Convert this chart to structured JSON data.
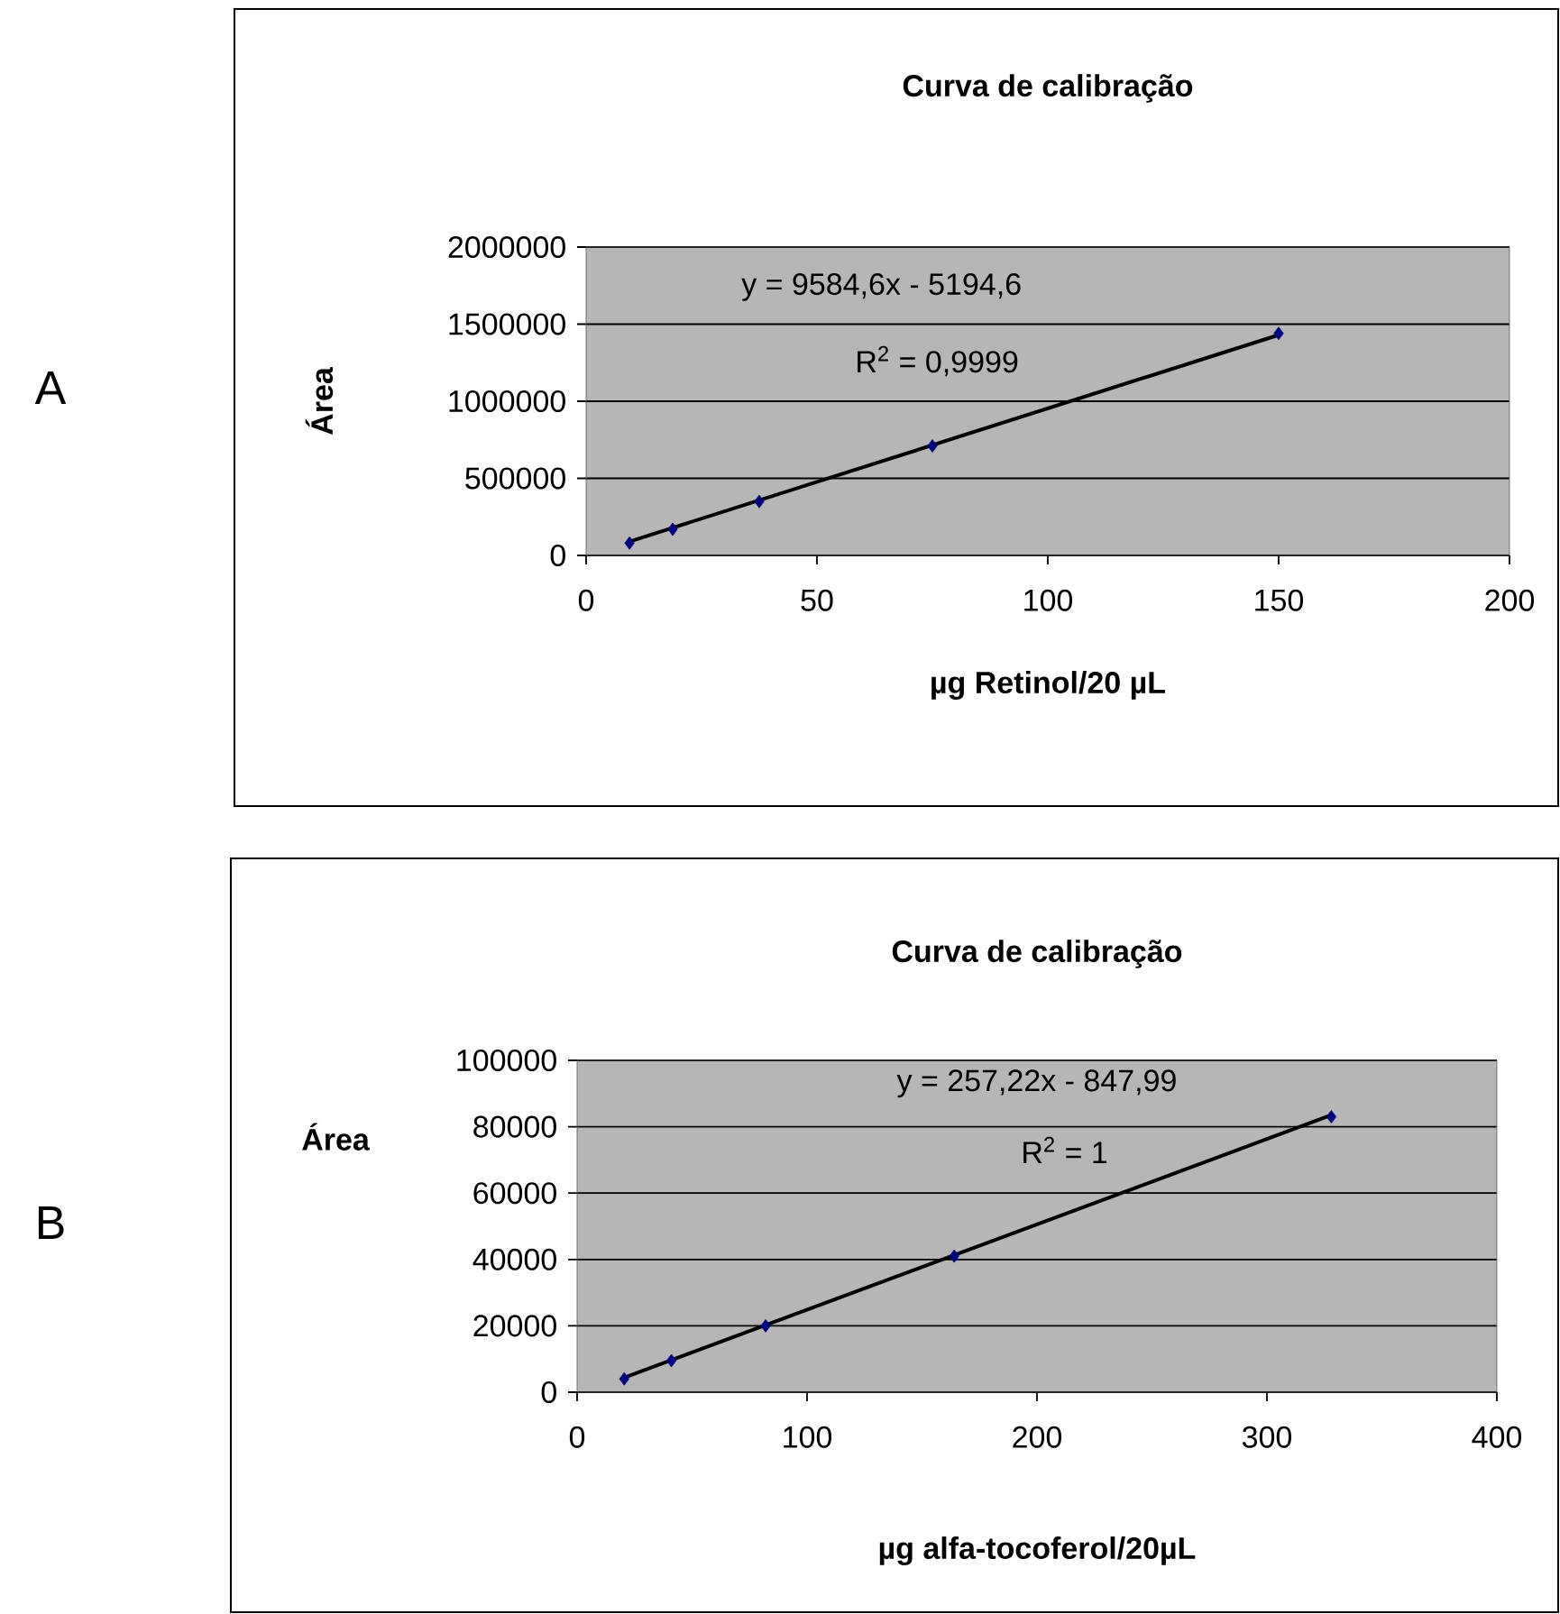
{
  "chart_data": [
    {
      "type": "scatter",
      "title": "Curva de calibração",
      "xlabel": "µg Retinol/20 µL",
      "ylabel": "Área",
      "xlim": [
        0,
        200
      ],
      "xticks": [
        0,
        50,
        100,
        150,
        200
      ],
      "ylim": [
        0,
        2000000
      ],
      "yticks": [
        0,
        500000,
        1000000,
        1500000,
        2000000
      ],
      "grid": "y",
      "series": [
        {
          "color": "#000080",
          "marker": "diamond",
          "x": [
            9.4,
            18.75,
            37.5,
            75,
            150
          ],
          "values": [
            80000,
            170000,
            350000,
            710000,
            1440000
          ]
        },
        {
          "type": "line",
          "marker": "none",
          "color": "#000000",
          "x": [
            9.4,
            150
          ],
          "values": [
            90000,
            1430000
          ]
        }
      ],
      "annotations": [
        "y = 9584,6x - 5194,6",
        "R$^{2}$ = 0,9999",
        "A"
      ]
    },
    {
      "type": "scatter",
      "title": "Curva de calibração",
      "xlabel": "µg alfa-tocoferol/20µL",
      "ylabel": "Área",
      "xlim": [
        0,
        400
      ],
      "xticks": [
        0,
        100,
        200,
        300,
        400
      ],
      "ylim": [
        0,
        100000
      ],
      "yticks": [
        0,
        20000,
        40000,
        60000,
        80000,
        100000
      ],
      "grid": "y",
      "series": [
        {
          "color": "#000080",
          "marker": "diamond",
          "x": [
            20.5,
            41,
            82,
            164,
            328
          ],
          "values": [
            4000,
            9500,
            20000,
            41000,
            83000
          ]
        },
        {
          "type": "line",
          "marker": "none",
          "color": "#000000",
          "x": [
            20.5,
            328
          ],
          "values": [
            4400,
            83500
          ]
        }
      ],
      "annotations": [
        "y = 257,22x - 847,99",
        "R$^{2}$ = 1",
        "B"
      ]
    }
  ]
}
